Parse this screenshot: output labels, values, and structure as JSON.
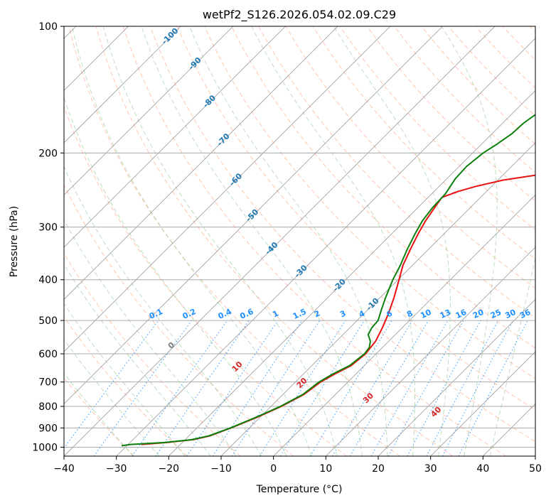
{
  "chart_data": {
    "type": "line",
    "subtype": "skew-t log-p diagram",
    "title": "wetPf2_S126.2026.054.02.09.C29",
    "xlabel": "Temperature (°C)",
    "ylabel": "Pressure (hPa)",
    "xlim": [
      -40,
      50
    ],
    "ylim": [
      1050,
      100
    ],
    "x_ticks": [
      -40,
      -30,
      -20,
      -10,
      0,
      10,
      20,
      30,
      40,
      50
    ],
    "x_tick_labels": [
      "−40",
      "−30",
      "−20",
      "−10",
      "0",
      "10",
      "20",
      "30",
      "40",
      "50"
    ],
    "y_ticks": [
      100,
      200,
      300,
      400,
      500,
      600,
      700,
      800,
      900,
      1000
    ],
    "y_tick_labels": [
      "100",
      "200",
      "300",
      "400",
      "500",
      "600",
      "700",
      "800",
      "900",
      "1000"
    ],
    "colors": {
      "temperature": "#e81010",
      "dewpoint": "#0c800c",
      "isotherm": "#999999",
      "isobar": "#aaaaaa",
      "dry_adiabat": "#ffa07a",
      "moist_adiabat": "#90c890",
      "mixing_ratio": "#1e90ff",
      "isotherm_label": "#1f77b4",
      "adiabat_label": "#d62728",
      "zero_label": "#808080",
      "mixing_label": "#1e90ff"
    },
    "series": [
      {
        "name": "Temperature",
        "color": "#e81010",
        "points": [
          {
            "p": 985,
            "t": -27.5
          },
          {
            "p": 975,
            "t": -23.0
          },
          {
            "p": 960,
            "t": -18.5
          },
          {
            "p": 940,
            "t": -16.0
          },
          {
            "p": 900,
            "t": -13.5
          },
          {
            "p": 850,
            "t": -10.6
          },
          {
            "p": 800,
            "t": -8.0
          },
          {
            "p": 750,
            "t": -6.0
          },
          {
            "p": 700,
            "t": -5.2
          },
          {
            "p": 670,
            "t": -4.0
          },
          {
            "p": 640,
            "t": -2.5
          },
          {
            "p": 600,
            "t": -2.0
          },
          {
            "p": 560,
            "t": -2.5
          },
          {
            "p": 520,
            "t": -3.8
          },
          {
            "p": 480,
            "t": -5.4
          },
          {
            "p": 440,
            "t": -7.4
          },
          {
            "p": 400,
            "t": -9.8
          },
          {
            "p": 370,
            "t": -11.8
          },
          {
            "p": 340,
            "t": -13.4
          },
          {
            "p": 310,
            "t": -15.0
          },
          {
            "p": 290,
            "t": -16.0
          },
          {
            "p": 270,
            "t": -16.8
          },
          {
            "p": 255,
            "t": -17.4
          },
          {
            "p": 247,
            "t": -15.5
          },
          {
            "p": 240,
            "t": -13.0
          },
          {
            "p": 232,
            "t": -9.0
          },
          {
            "p": 225,
            "t": -3.0
          },
          {
            "p": 215,
            "t": 2.0
          },
          {
            "p": 205,
            "t": 6.0
          },
          {
            "p": 195,
            "t": 10.0
          },
          {
            "p": 185,
            "t": 15.0
          },
          {
            "p": 175,
            "t": 19.0
          },
          {
            "p": 160,
            "t": 23.0
          },
          {
            "p": 150,
            "t": 27.0
          },
          {
            "p": 140,
            "t": 30.0
          },
          {
            "p": 130,
            "t": 33.5
          },
          {
            "p": 120,
            "t": 39.0
          },
          {
            "p": 110,
            "t": 45.0
          },
          {
            "p": 100,
            "t": 53.0
          }
        ]
      },
      {
        "name": "Dewpoint",
        "color": "#0c800c",
        "points": [
          {
            "p": 992,
            "t": -31.0
          },
          {
            "p": 985,
            "t": -29.5
          },
          {
            "p": 975,
            "t": -23.5
          },
          {
            "p": 960,
            "t": -18.8
          },
          {
            "p": 940,
            "t": -16.2
          },
          {
            "p": 900,
            "t": -13.6
          },
          {
            "p": 850,
            "t": -10.8
          },
          {
            "p": 800,
            "t": -8.2
          },
          {
            "p": 750,
            "t": -6.2
          },
          {
            "p": 700,
            "t": -5.5
          },
          {
            "p": 670,
            "t": -4.4
          },
          {
            "p": 640,
            "t": -2.8
          },
          {
            "p": 600,
            "t": -2.2
          },
          {
            "p": 580,
            "t": -2.5
          },
          {
            "p": 560,
            "t": -3.5
          },
          {
            "p": 540,
            "t": -5.2
          },
          {
            "p": 520,
            "t": -5.8
          },
          {
            "p": 500,
            "t": -6.0
          },
          {
            "p": 470,
            "t": -7.5
          },
          {
            "p": 440,
            "t": -9.0
          },
          {
            "p": 400,
            "t": -11.0
          },
          {
            "p": 370,
            "t": -12.3
          },
          {
            "p": 340,
            "t": -14.0
          },
          {
            "p": 310,
            "t": -15.6
          },
          {
            "p": 290,
            "t": -16.6
          },
          {
            "p": 270,
            "t": -17.2
          },
          {
            "p": 250,
            "t": -17.4
          },
          {
            "p": 230,
            "t": -18.4
          },
          {
            "p": 215,
            "t": -18.6
          },
          {
            "p": 200,
            "t": -18.0
          },
          {
            "p": 190,
            "t": -17.0
          },
          {
            "p": 180,
            "t": -16.2
          },
          {
            "p": 170,
            "t": -16.0
          },
          {
            "p": 160,
            "t": -15.2
          },
          {
            "p": 150,
            "t": -13.5
          },
          {
            "p": 140,
            "t": -11.0
          },
          {
            "p": 130,
            "t": -8.5
          },
          {
            "p": 120,
            "t": -6.0
          },
          {
            "p": 112,
            "t": -3.0
          },
          {
            "p": 105,
            "t": -0.5
          },
          {
            "p": 100,
            "t": 0.5
          }
        ]
      }
    ],
    "isotherm_labels": [
      "-100",
      "-90",
      "-80",
      "-70",
      "-60",
      "-50",
      "-40",
      "-30",
      "-20",
      "-10"
    ],
    "isotherm_label_values": [
      -100,
      -90,
      -80,
      -70,
      -60,
      -50,
      -40,
      -30,
      -20,
      -10
    ],
    "adiabat_labels": [
      "0",
      "10",
      "20",
      "30",
      "40"
    ],
    "adiabat_label_values": [
      0,
      10,
      20,
      30,
      40
    ],
    "mixing_ratio_labels": [
      "0.1",
      "0.2",
      "0.4",
      "0.6",
      "1",
      "1.5",
      "2",
      "3",
      "4",
      "6",
      "8",
      "10",
      "13",
      "16",
      "20",
      "25",
      "30",
      "36"
    ],
    "mixing_ratio_values": [
      0.1,
      0.2,
      0.4,
      0.6,
      1,
      1.5,
      2,
      3,
      4,
      6,
      8,
      10,
      13,
      16,
      20,
      25,
      30,
      36
    ],
    "grid": true
  }
}
